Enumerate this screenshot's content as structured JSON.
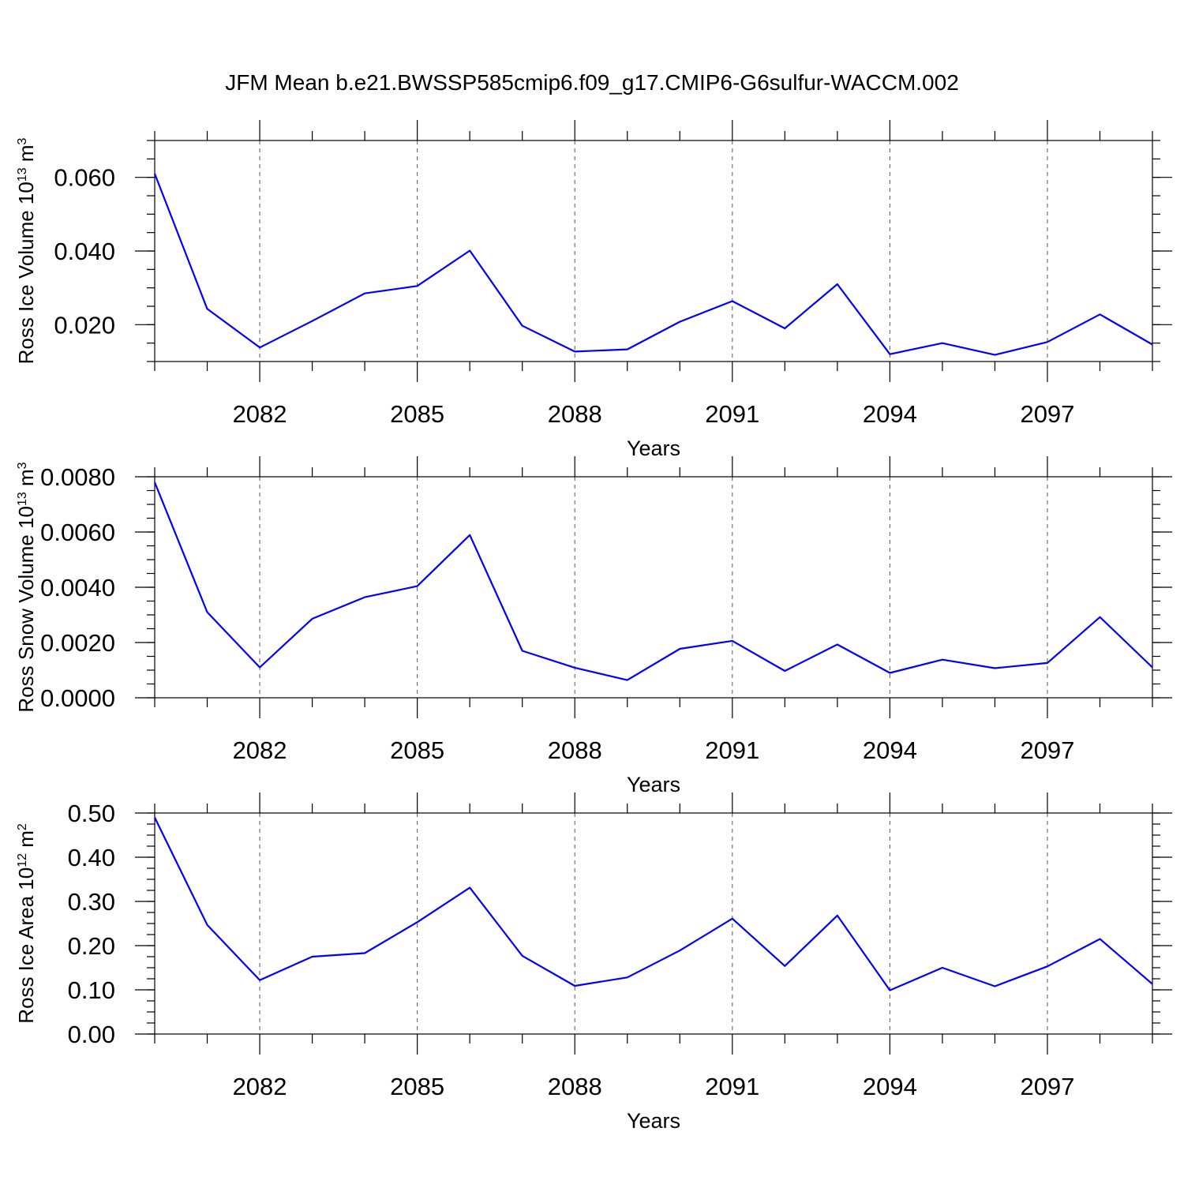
{
  "title": "JFM Mean b.e21.BWSSP585cmip6.f09_g17.CMIP6-G6sulfur-WACCM.002",
  "colors": {
    "series": "#0000ff",
    "grid": "#555555",
    "axis": "#000000"
  },
  "chart_data": [
    {
      "type": "line",
      "xlabel": "Years",
      "ylabel_main": "Ross Ice Volume 10",
      "ylabel_exp": "13",
      "ylabel_unit": " m",
      "ylabel_unit_exp": "3",
      "xlim": [
        2080,
        2099
      ],
      "ylim": [
        0.01,
        0.07
      ],
      "yticks": [
        0.02,
        0.04,
        0.06
      ],
      "ytick_labels": [
        "0.020",
        "0.040",
        "0.060"
      ],
      "yminor_step": 0.005,
      "xticks": [
        2082,
        2085,
        2088,
        2091,
        2094,
        2097
      ],
      "xtick_labels": [
        "2082",
        "2085",
        "2088",
        "2091",
        "2094",
        "2097"
      ],
      "x": [
        2080,
        2081,
        2082,
        2083,
        2084,
        2085,
        2086,
        2087,
        2088,
        2089,
        2090,
        2091,
        2092,
        2093,
        2094,
        2095,
        2096,
        2097,
        2098,
        2099
      ],
      "values": [
        0.061,
        0.0243,
        0.0138,
        0.021,
        0.0285,
        0.0305,
        0.0401,
        0.0197,
        0.0127,
        0.0133,
        0.0208,
        0.0264,
        0.019,
        0.031,
        0.012,
        0.015,
        0.0118,
        0.0153,
        0.0228,
        0.0146
      ]
    },
    {
      "type": "line",
      "xlabel": "Years",
      "ylabel_main": "Ross Snow Volume 10",
      "ylabel_exp": "13",
      "ylabel_unit": " m",
      "ylabel_unit_exp": "3",
      "xlim": [
        2080,
        2099
      ],
      "ylim": [
        0.0,
        0.008
      ],
      "yticks": [
        0.0,
        0.002,
        0.004,
        0.006,
        0.008
      ],
      "ytick_labels": [
        "0.0000",
        "0.0020",
        "0.0040",
        "0.0060",
        "0.0080"
      ],
      "yminor_step": 0.0005,
      "xticks": [
        2082,
        2085,
        2088,
        2091,
        2094,
        2097
      ],
      "xtick_labels": [
        "2082",
        "2085",
        "2088",
        "2091",
        "2094",
        "2097"
      ],
      "x": [
        2080,
        2081,
        2082,
        2083,
        2084,
        2085,
        2086,
        2087,
        2088,
        2089,
        2090,
        2091,
        2092,
        2093,
        2094,
        2095,
        2096,
        2097,
        2098,
        2099
      ],
      "values": [
        0.0078,
        0.0031,
        0.0011,
        0.00286,
        0.00364,
        0.00404,
        0.00589,
        0.0017,
        0.00109,
        0.00064,
        0.00177,
        0.00206,
        0.00097,
        0.00193,
        0.0009,
        0.00138,
        0.00107,
        0.00126,
        0.00292,
        0.0011
      ]
    },
    {
      "type": "line",
      "xlabel": "Years",
      "ylabel_main": "Ross Ice Area 10",
      "ylabel_exp": "12",
      "ylabel_unit": " m",
      "ylabel_unit_exp": "2",
      "xlim": [
        2080,
        2099
      ],
      "ylim": [
        0.0,
        0.5
      ],
      "yticks": [
        0.0,
        0.1,
        0.2,
        0.3,
        0.4,
        0.5
      ],
      "ytick_labels": [
        "0.00",
        "0.10",
        "0.20",
        "0.30",
        "0.40",
        "0.50"
      ],
      "yminor_step": 0.025,
      "xticks": [
        2082,
        2085,
        2088,
        2091,
        2094,
        2097
      ],
      "xtick_labels": [
        "2082",
        "2085",
        "2088",
        "2091",
        "2094",
        "2097"
      ],
      "x": [
        2080,
        2081,
        2082,
        2083,
        2084,
        2085,
        2086,
        2087,
        2088,
        2089,
        2090,
        2091,
        2092,
        2093,
        2094,
        2095,
        2096,
        2097,
        2098,
        2099
      ],
      "values": [
        0.49,
        0.247,
        0.122,
        0.175,
        0.183,
        0.253,
        0.331,
        0.177,
        0.109,
        0.128,
        0.189,
        0.261,
        0.154,
        0.268,
        0.099,
        0.15,
        0.108,
        0.153,
        0.215,
        0.113
      ]
    }
  ]
}
